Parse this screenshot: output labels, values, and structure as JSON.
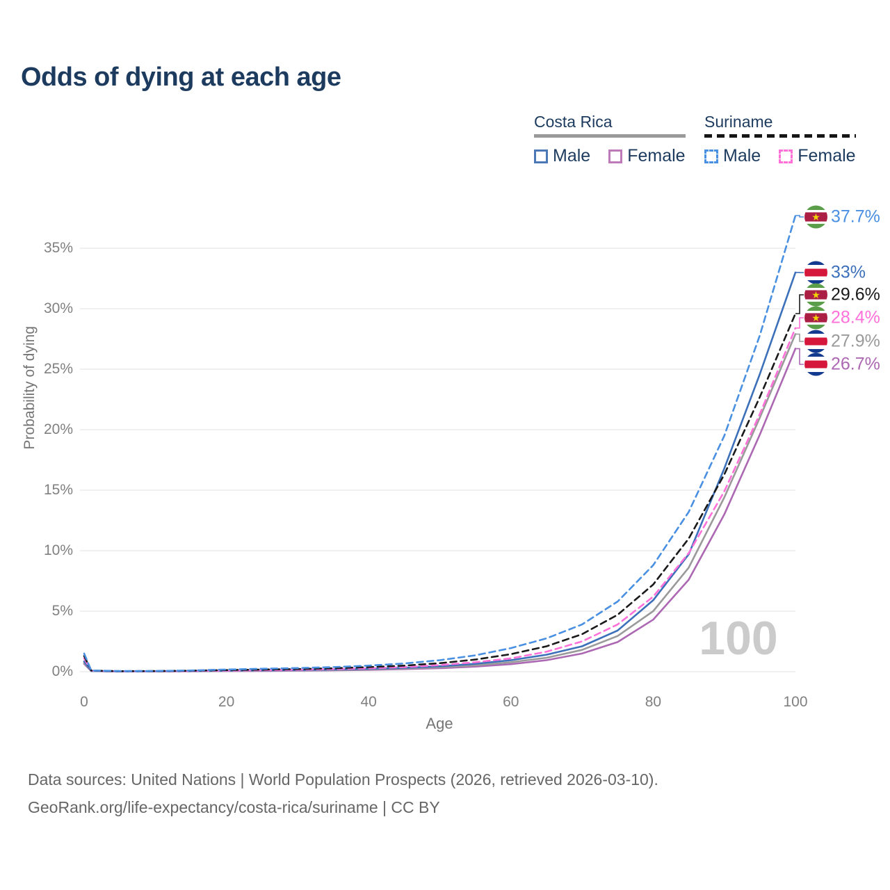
{
  "title": "Odds of dying at each age",
  "watermark": "100",
  "legend": {
    "groups": [
      {
        "name": "Costa Rica",
        "underline_style": "solid",
        "underline_color": "#9a9a9a",
        "items": [
          {
            "label": "Male",
            "color": "#4c79b5",
            "dashed": false
          },
          {
            "label": "Female",
            "color": "#bd7ab8",
            "dashed": false
          }
        ]
      },
      {
        "name": "Suriname",
        "underline_style": "dashed",
        "underline_color": "#161616",
        "items": [
          {
            "label": "Male",
            "color": "#4a90e2",
            "dashed": true
          },
          {
            "label": "Female",
            "color": "#ff70d9",
            "dashed": true
          }
        ]
      }
    ]
  },
  "chart_data": {
    "type": "line",
    "title": "Odds of dying at each age",
    "xlabel": "Age",
    "ylabel": "Probability of dying",
    "xlim": [
      0,
      100
    ],
    "ylim_pct": [
      0,
      35
    ],
    "x_ticks": [
      0,
      20,
      40,
      60,
      80,
      100
    ],
    "y_ticks_pct": [
      0,
      5,
      10,
      15,
      20,
      25,
      30,
      35
    ],
    "grid": true,
    "legend_position": "top-right",
    "x": [
      0,
      1,
      5,
      10,
      15,
      20,
      25,
      30,
      35,
      40,
      45,
      50,
      55,
      60,
      65,
      70,
      75,
      80,
      85,
      90,
      95,
      100
    ],
    "series": [
      {
        "name": "Costa Rica Female",
        "country": "Costa Rica",
        "sex": "female",
        "flag": "costa-rica",
        "color": "#ac68b2",
        "dashed": false,
        "end_label": "26.7%",
        "values_pct": [
          0.65,
          0.05,
          0.02,
          0.02,
          0.03,
          0.05,
          0.06,
          0.08,
          0.11,
          0.15,
          0.21,
          0.29,
          0.42,
          0.62,
          0.95,
          1.5,
          2.45,
          4.3,
          7.6,
          13.0,
          19.6,
          26.7
        ]
      },
      {
        "name": "Costa Rica",
        "country": "Costa Rica",
        "sex": "both",
        "flag": "costa-rica",
        "color": "#9a9a9a",
        "dashed": false,
        "end_label": "27.9%",
        "values_pct": [
          0.75,
          0.05,
          0.02,
          0.03,
          0.04,
          0.07,
          0.09,
          0.11,
          0.14,
          0.19,
          0.26,
          0.36,
          0.52,
          0.78,
          1.15,
          1.8,
          2.95,
          5.0,
          8.6,
          14.4,
          21.0,
          27.9
        ]
      },
      {
        "name": "Costa Rica Male",
        "country": "Costa Rica",
        "sex": "male",
        "flag": "costa-rica",
        "color": "#3c70ba",
        "dashed": false,
        "end_label": "33%",
        "values_pct": [
          0.85,
          0.06,
          0.02,
          0.03,
          0.05,
          0.08,
          0.11,
          0.14,
          0.18,
          0.24,
          0.32,
          0.45,
          0.65,
          0.95,
          1.4,
          2.1,
          3.4,
          5.9,
          9.7,
          16.8,
          24.6,
          33.0
        ]
      },
      {
        "name": "Suriname Female",
        "country": "Suriname",
        "sex": "female",
        "flag": "suriname",
        "color": "#ff70d9",
        "dashed": true,
        "end_label": "28.4%",
        "values_pct": [
          1.1,
          0.08,
          0.03,
          0.04,
          0.06,
          0.09,
          0.12,
          0.16,
          0.21,
          0.28,
          0.38,
          0.54,
          0.78,
          1.1,
          1.65,
          2.5,
          3.9,
          6.2,
          9.8,
          14.9,
          21.3,
          28.4
        ]
      },
      {
        "name": "Suriname",
        "country": "Suriname",
        "sex": "both",
        "flag": "suriname",
        "color": "#1a1a1a",
        "dashed": true,
        "end_label": "29.6%",
        "values_pct": [
          1.3,
          0.09,
          0.04,
          0.05,
          0.08,
          0.13,
          0.17,
          0.22,
          0.28,
          0.38,
          0.5,
          0.7,
          1.0,
          1.45,
          2.1,
          3.1,
          4.7,
          7.2,
          11.0,
          16.3,
          22.7,
          29.6
        ]
      },
      {
        "name": "Suriname Male",
        "country": "Suriname",
        "sex": "male",
        "flag": "suriname",
        "color": "#4a90e2",
        "dashed": true,
        "end_label": "37.7%",
        "values_pct": [
          1.5,
          0.1,
          0.05,
          0.06,
          0.1,
          0.18,
          0.24,
          0.3,
          0.38,
          0.5,
          0.68,
          0.95,
          1.35,
          1.95,
          2.75,
          3.9,
          5.8,
          8.8,
          13.2,
          19.5,
          27.8,
          37.7
        ]
      }
    ],
    "age_counter": "100"
  },
  "flag_colors": {
    "costa_rica": {
      "blue": "#123a8e",
      "white": "#ffffff",
      "red": "#d6173c"
    },
    "suriname": {
      "green": "#5a9e49",
      "white": "#ffffff",
      "red": "#ab1f44",
      "star": "#f0d500"
    }
  },
  "footer": {
    "line1": "Data sources: United Nations | World Population Prospects (2026, retrieved 2026-03-10).",
    "line2": "GeoRank.org/life-expectancy/costa-rica/suriname | CC BY"
  }
}
